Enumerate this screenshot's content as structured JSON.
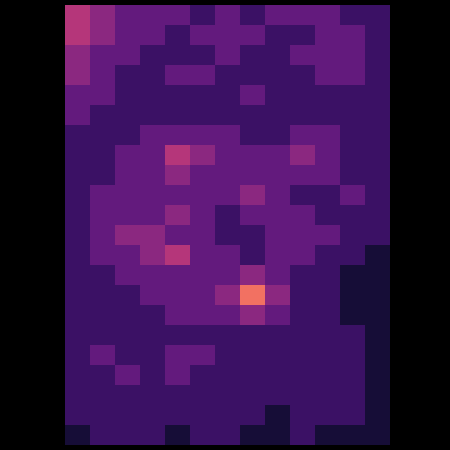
{
  "chart_data": {
    "type": "heatmap",
    "tick_labels": false,
    "color_range": [
      0,
      10
    ],
    "cells": [
      [
        5,
        4,
        3,
        3,
        3,
        2,
        3,
        2,
        3,
        3,
        3,
        2,
        2
      ],
      [
        5,
        4,
        3,
        3,
        2,
        3,
        3,
        3,
        2,
        2,
        3,
        3,
        2
      ],
      [
        4,
        3,
        3,
        2,
        2,
        2,
        3,
        2,
        2,
        3,
        3,
        3,
        2
      ],
      [
        4,
        3,
        2,
        2,
        3,
        3,
        2,
        2,
        2,
        2,
        3,
        3,
        2
      ],
      [
        3,
        3,
        2,
        2,
        2,
        2,
        2,
        3,
        2,
        2,
        2,
        2,
        2
      ],
      [
        3,
        2,
        2,
        2,
        2,
        2,
        2,
        2,
        2,
        2,
        2,
        2,
        2
      ],
      [
        2,
        2,
        2,
        3,
        3,
        3,
        3,
        2,
        2,
        3,
        3,
        2,
        2
      ],
      [
        2,
        2,
        3,
        3,
        5,
        4,
        3,
        3,
        3,
        4,
        3,
        2,
        2
      ],
      [
        2,
        2,
        3,
        3,
        4,
        3,
        3,
        3,
        3,
        3,
        3,
        2,
        2
      ],
      [
        2,
        3,
        3,
        3,
        3,
        3,
        3,
        4,
        3,
        2,
        2,
        3,
        2
      ],
      [
        2,
        3,
        3,
        3,
        4,
        3,
        2,
        3,
        3,
        3,
        2,
        2,
        2
      ],
      [
        2,
        3,
        4,
        4,
        3,
        3,
        2,
        2,
        3,
        3,
        3,
        2,
        2
      ],
      [
        2,
        3,
        3,
        4,
        5,
        3,
        3,
        2,
        3,
        3,
        2,
        2,
        1
      ],
      [
        2,
        2,
        3,
        3,
        3,
        3,
        3,
        4,
        3,
        2,
        2,
        1,
        1
      ],
      [
        2,
        2,
        2,
        3,
        3,
        3,
        4,
        7,
        4,
        2,
        2,
        1,
        1
      ],
      [
        2,
        2,
        2,
        2,
        3,
        3,
        3,
        4,
        3,
        2,
        2,
        1,
        1
      ],
      [
        2,
        2,
        2,
        2,
        2,
        2,
        2,
        2,
        2,
        2,
        2,
        2,
        1
      ],
      [
        2,
        3,
        2,
        2,
        3,
        3,
        2,
        2,
        2,
        2,
        2,
        2,
        1
      ],
      [
        2,
        2,
        3,
        2,
        3,
        2,
        2,
        2,
        2,
        2,
        2,
        2,
        1
      ],
      [
        2,
        2,
        2,
        2,
        2,
        2,
        2,
        2,
        2,
        2,
        2,
        2,
        1
      ],
      [
        2,
        2,
        2,
        2,
        2,
        2,
        2,
        2,
        1,
        2,
        2,
        2,
        1
      ],
      [
        1,
        2,
        2,
        2,
        1,
        2,
        2,
        1,
        1,
        2,
        1,
        1,
        1
      ]
    ]
  }
}
